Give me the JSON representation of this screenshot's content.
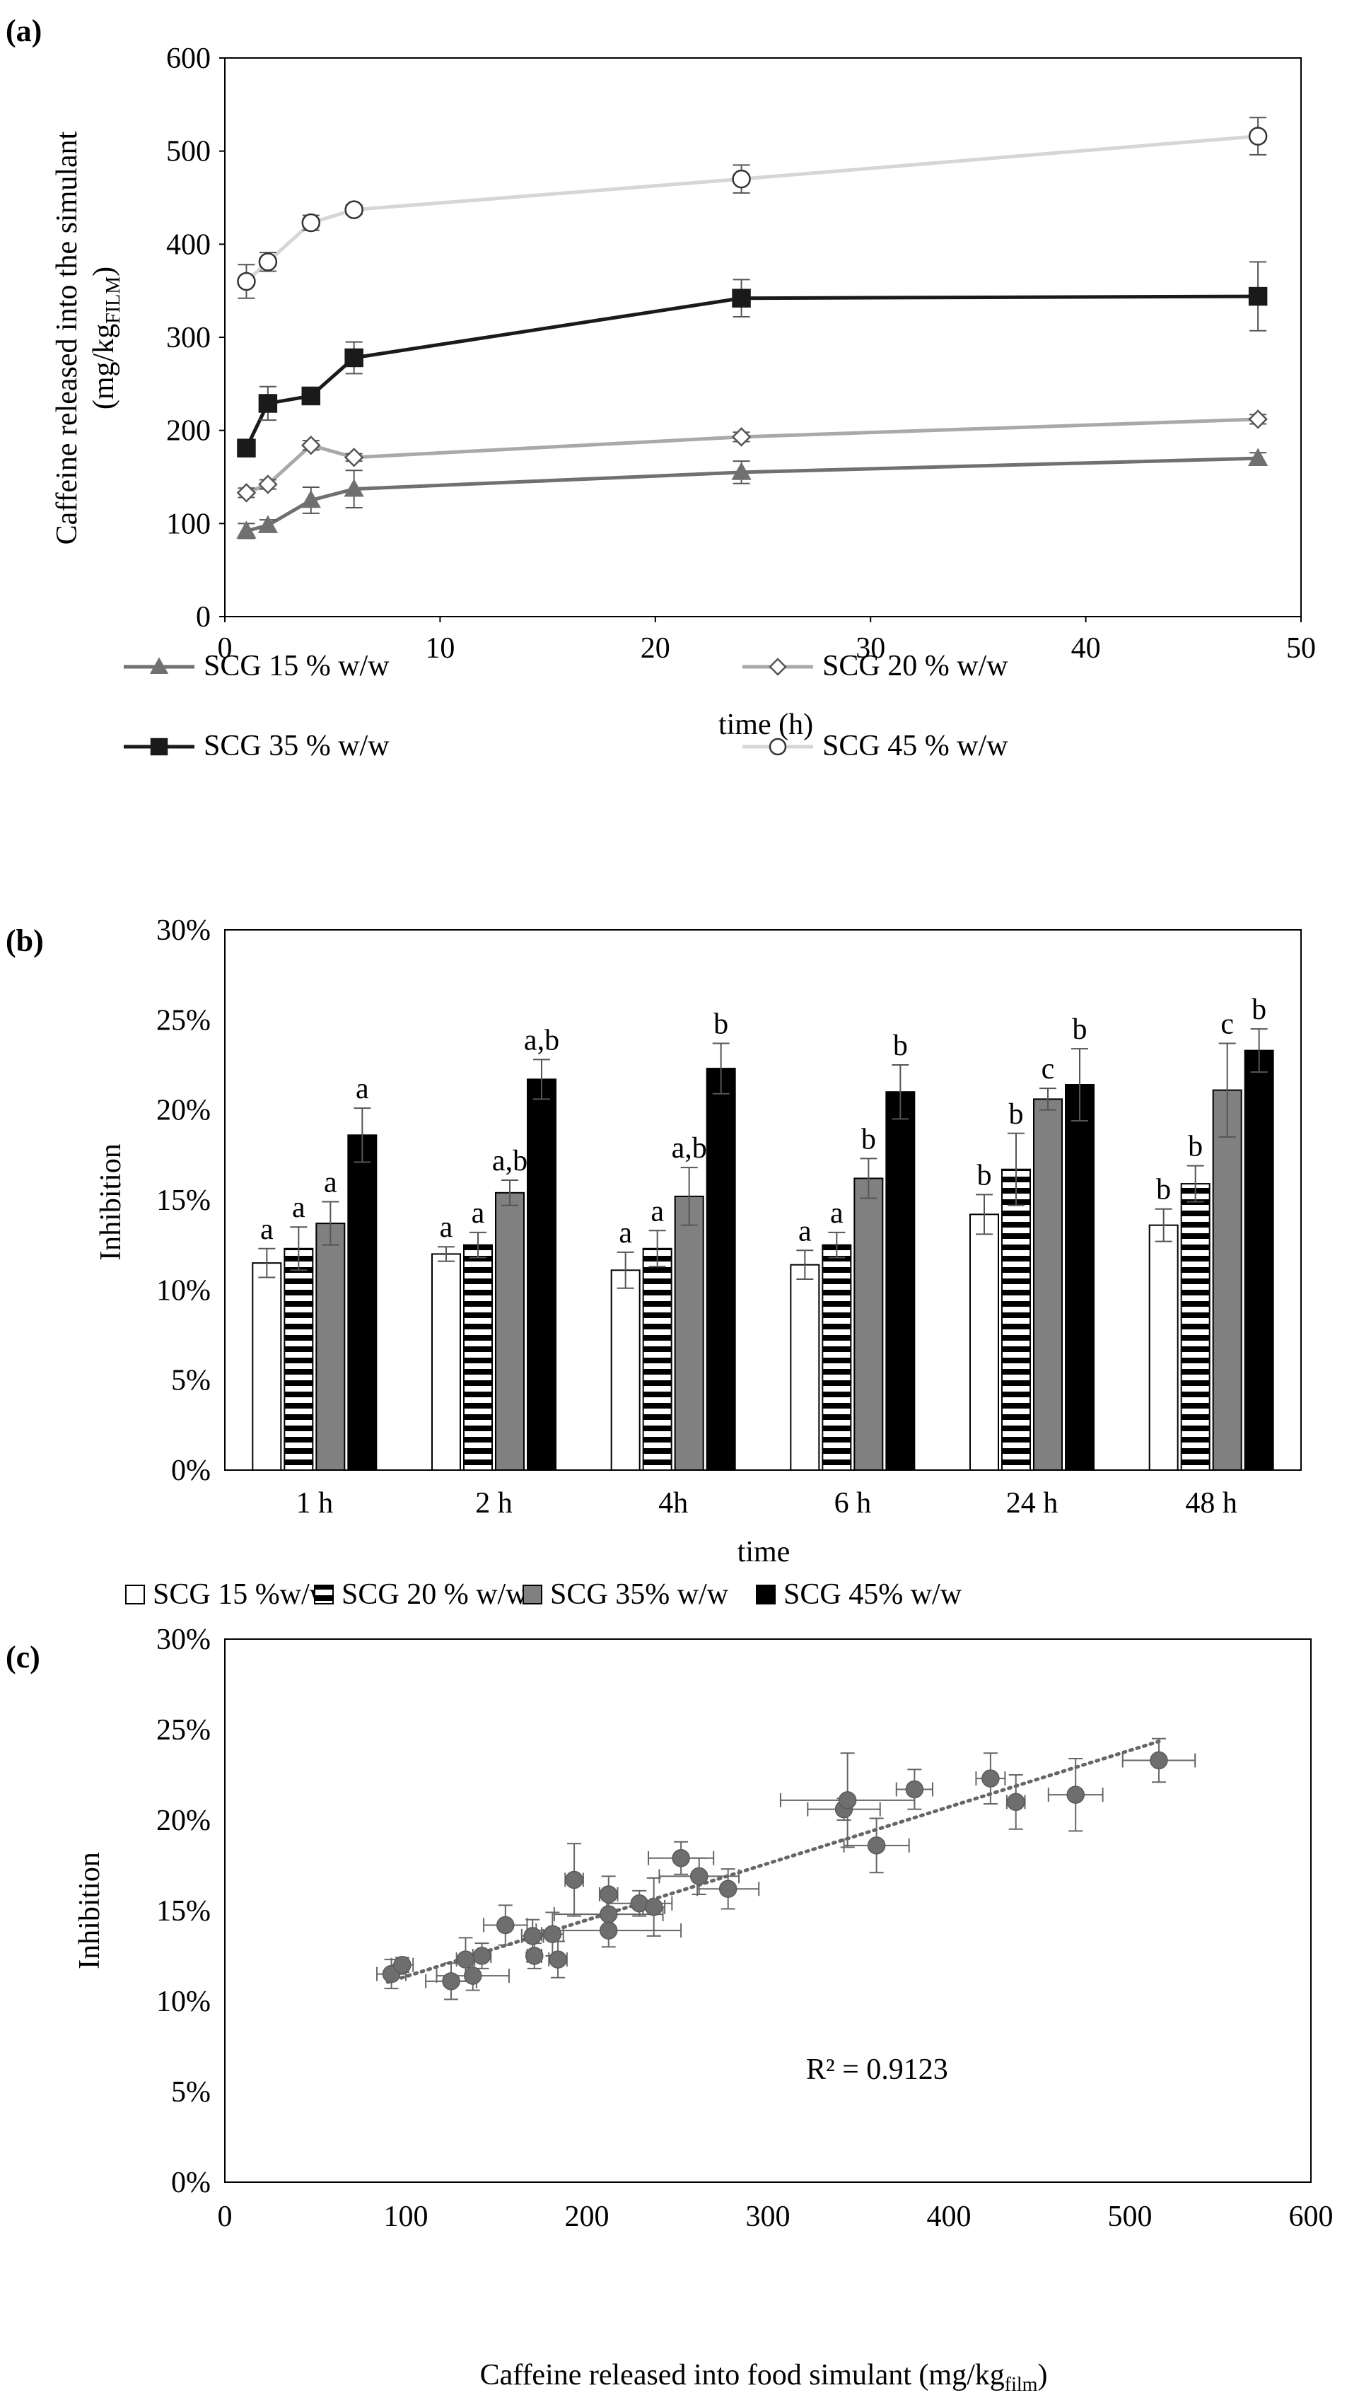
{
  "chart_data": [
    {
      "panel": "(a)",
      "type": "line",
      "title": "",
      "xlabel": "time (h)",
      "ylabel_main": "Caffeine released into the simulant",
      "ylabel_unit": "(mg/kg",
      "ylabel_sub": "FILM",
      "ylabel_close": ")",
      "xlim": [
        0,
        50
      ],
      "ylim": [
        0,
        600
      ],
      "xticks": [
        0,
        10,
        20,
        30,
        40,
        50
      ],
      "yticks": [
        0,
        100,
        200,
        300,
        400,
        500,
        600
      ],
      "x": [
        1,
        2,
        4,
        6,
        24,
        48
      ],
      "series": [
        {
          "name": "SCG 15 % w/w",
          "marker": "triangle",
          "color": "#707070",
          "markerFill": "#707070",
          "values": [
            92,
            98,
            125,
            137,
            155,
            170
          ],
          "errors": [
            8,
            6,
            14,
            20,
            12,
            6
          ]
        },
        {
          "name": "SCG 20  % w/w",
          "marker": "diamond",
          "color": "#a9a9a9",
          "markerFill": "#ffffff",
          "values": [
            133,
            142,
            184,
            171,
            193,
            212
          ],
          "errors": [
            5,
            5,
            5,
            4,
            5,
            5
          ]
        },
        {
          "name": "SCG 35  % w/w",
          "marker": "square",
          "color": "#1a1a1a",
          "markerFill": "#1a1a1a",
          "values": [
            181,
            229,
            237,
            278,
            342,
            344
          ],
          "errors": [
            6,
            18,
            6,
            17,
            20,
            37
          ]
        },
        {
          "name": "SCG 45  % w/w",
          "marker": "circle",
          "color": "#d6d6d6",
          "markerFill": "#ffffff",
          "values": [
            360,
            381,
            423,
            437,
            470,
            516
          ],
          "errors": [
            18,
            10,
            8,
            5,
            15,
            20
          ]
        }
      ]
    },
    {
      "panel": "(b)",
      "type": "bar",
      "title": "",
      "xlabel": "time",
      "ylabel": "Inhibition",
      "ylim": [
        0,
        30
      ],
      "yticks": [
        "0%",
        "5%",
        "10%",
        "15%",
        "20%",
        "25%",
        "30%"
      ],
      "categories": [
        "1 h",
        "2 h",
        "4h",
        "6 h",
        "24 h",
        "48 h"
      ],
      "series": [
        {
          "name": "SCG 15 %w/w",
          "pattern": "white",
          "values": [
            11.5,
            12.0,
            11.1,
            11.4,
            14.2,
            13.6
          ],
          "errors": [
            0.8,
            0.4,
            1.0,
            0.8,
            1.1,
            0.9
          ],
          "letters": [
            "a",
            "a",
            "a",
            "a",
            "b",
            "b"
          ]
        },
        {
          "name": "SCG 20 % w/w",
          "pattern": "stripes",
          "values": [
            12.3,
            12.5,
            12.3,
            12.5,
            16.7,
            15.9
          ],
          "errors": [
            1.2,
            0.7,
            1.0,
            0.7,
            2.0,
            1.0
          ],
          "letters": [
            "a",
            "a",
            "a",
            "a",
            "b",
            "b"
          ]
        },
        {
          "name": "SCG 35% w/w",
          "pattern": "gray",
          "values": [
            13.7,
            15.4,
            15.2,
            16.2,
            20.6,
            21.1
          ],
          "errors": [
            1.2,
            0.7,
            1.6,
            1.1,
            0.6,
            2.6
          ],
          "letters": [
            "a",
            "a,b",
            "a,b",
            "b",
            "c",
            "c"
          ]
        },
        {
          "name": "SCG 45% w/w",
          "pattern": "black",
          "values": [
            18.6,
            21.7,
            22.3,
            21.0,
            21.4,
            23.3
          ],
          "errors": [
            1.5,
            1.1,
            1.4,
            1.5,
            2.0,
            1.2
          ],
          "letters": [
            "a",
            "a,b",
            "b",
            "b",
            "b",
            "b"
          ]
        }
      ]
    },
    {
      "panel": "(c)",
      "type": "scatter",
      "title": "",
      "xlabel_main": "Caffeine released into food simulant (mg/kg",
      "xlabel_sub": "film",
      "xlabel_close": ")",
      "ylabel": "Inhibition",
      "xlim": [
        0,
        600
      ],
      "ylim": [
        0,
        30
      ],
      "xticks": [
        0,
        100,
        200,
        300,
        400,
        500,
        600
      ],
      "yticks": [
        "0%",
        "5%",
        "10%",
        "15%",
        "20%",
        "25%",
        "30%"
      ],
      "annotation": "R² = 0.9123",
      "trendline": {
        "x": [
          90,
          516
        ],
        "y": [
          11.05,
          24.35
        ]
      },
      "points": [
        {
          "x": 92,
          "y": 11.5,
          "xerr": 8,
          "yerr": 0.8
        },
        {
          "x": 98,
          "y": 12.0,
          "xerr": 6,
          "yerr": 0.4
        },
        {
          "x": 125,
          "y": 11.1,
          "xerr": 14,
          "yerr": 1.0
        },
        {
          "x": 137,
          "y": 11.4,
          "xerr": 20,
          "yerr": 0.8
        },
        {
          "x": 155,
          "y": 14.2,
          "xerr": 12,
          "yerr": 1.1
        },
        {
          "x": 170,
          "y": 13.6,
          "xerr": 6,
          "yerr": 0.9
        },
        {
          "x": 133,
          "y": 12.3,
          "xerr": 5,
          "yerr": 1.2
        },
        {
          "x": 142,
          "y": 12.5,
          "xerr": 5,
          "yerr": 0.7
        },
        {
          "x": 184,
          "y": 12.3,
          "xerr": 5,
          "yerr": 1.0
        },
        {
          "x": 171,
          "y": 12.5,
          "xerr": 4,
          "yerr": 0.7
        },
        {
          "x": 193,
          "y": 16.7,
          "xerr": 5,
          "yerr": 2.0
        },
        {
          "x": 212,
          "y": 15.9,
          "xerr": 5,
          "yerr": 1.0
        },
        {
          "x": 181,
          "y": 13.7,
          "xerr": 6,
          "yerr": 1.2
        },
        {
          "x": 229,
          "y": 15.4,
          "xerr": 18,
          "yerr": 0.7
        },
        {
          "x": 237,
          "y": 15.2,
          "xerr": 6,
          "yerr": 1.6
        },
        {
          "x": 278,
          "y": 16.2,
          "xerr": 17,
          "yerr": 1.1
        },
        {
          "x": 342,
          "y": 20.6,
          "xerr": 20,
          "yerr": 0.6
        },
        {
          "x": 344,
          "y": 21.1,
          "xerr": 37,
          "yerr": 2.6
        },
        {
          "x": 360,
          "y": 18.6,
          "xerr": 18,
          "yerr": 1.5
        },
        {
          "x": 381,
          "y": 21.7,
          "xerr": 10,
          "yerr": 1.1
        },
        {
          "x": 423,
          "y": 22.3,
          "xerr": 8,
          "yerr": 1.4
        },
        {
          "x": 437,
          "y": 21.0,
          "xerr": 5,
          "yerr": 1.5
        },
        {
          "x": 470,
          "y": 21.4,
          "xerr": 15,
          "yerr": 2.0
        },
        {
          "x": 516,
          "y": 23.3,
          "xerr": 20,
          "yerr": 1.2
        },
        {
          "x": 212,
          "y": 14.8,
          "xerr": 30,
          "yerr": 0.8
        },
        {
          "x": 212,
          "y": 13.9,
          "xerr": 40,
          "yerr": 0.9
        },
        {
          "x": 252,
          "y": 17.9,
          "xerr": 18,
          "yerr": 0.9
        },
        {
          "x": 262,
          "y": 16.9,
          "xerr": 22,
          "yerr": 1.0
        }
      ]
    }
  ]
}
